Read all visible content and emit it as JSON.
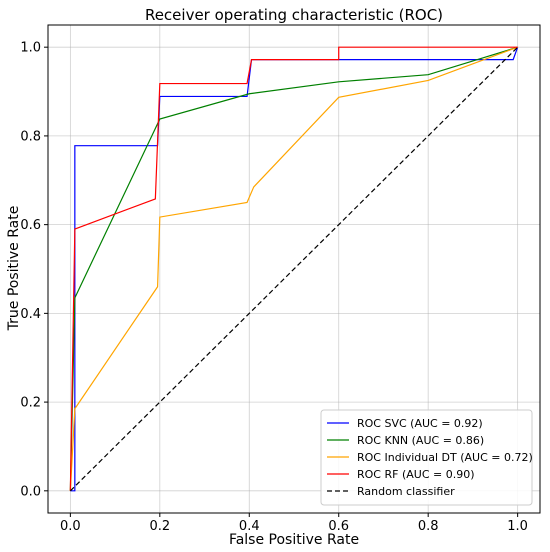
{
  "chart_data": {
    "type": "line",
    "title": "Receiver operating characteristic (ROC)",
    "xlabel": "False Positive Rate",
    "ylabel": "True Positive Rate",
    "xlim": [
      -0.05,
      1.05
    ],
    "ylim": [
      -0.05,
      1.05
    ],
    "xticks": [
      0.0,
      0.2,
      0.4,
      0.6,
      0.8,
      1.0
    ],
    "xtick_labels": [
      "0.0",
      "0.2",
      "0.4",
      "0.6",
      "0.8",
      "1.0"
    ],
    "yticks": [
      0.0,
      0.2,
      0.4,
      0.6,
      0.8,
      1.0
    ],
    "ytick_labels": [
      "0.0",
      "0.2",
      "0.4",
      "0.6",
      "0.8",
      "1.0"
    ],
    "grid": true,
    "legend_position": "bottom-right",
    "series": [
      {
        "name": "ROC SVC (AUC = 0.92)",
        "color": "#0000ff",
        "dash": "solid",
        "x": [
          0.0,
          0.01,
          0.01,
          0.195,
          0.2,
          0.395,
          0.405,
          0.6,
          0.8,
          0.99,
          1.0
        ],
        "y": [
          0.0,
          0.0,
          0.778,
          0.778,
          0.889,
          0.889,
          0.972,
          0.972,
          0.972,
          0.972,
          1.0
        ]
      },
      {
        "name": "ROC KNN (AUC = 0.86)",
        "color": "#008000",
        "dash": "solid",
        "x": [
          0.0,
          0.01,
          0.2,
          0.4,
          0.6,
          0.8,
          1.0
        ],
        "y": [
          0.0,
          0.435,
          0.838,
          0.895,
          0.922,
          0.938,
          1.0
        ]
      },
      {
        "name": "ROC Individual DT (AUC = 0.72)",
        "color": "#ffa500",
        "dash": "solid",
        "x": [
          0.0,
          0.01,
          0.195,
          0.2,
          0.395,
          0.41,
          0.6,
          0.8,
          1.0
        ],
        "y": [
          0.0,
          0.185,
          0.46,
          0.617,
          0.65,
          0.685,
          0.887,
          0.925,
          1.0
        ]
      },
      {
        "name": "ROC RF (AUC = 0.90)",
        "color": "#ff0000",
        "dash": "solid",
        "x": [
          0.0,
          0.01,
          0.19,
          0.2,
          0.395,
          0.405,
          0.6,
          0.6,
          1.0
        ],
        "y": [
          0.0,
          0.59,
          0.658,
          0.918,
          0.918,
          0.972,
          0.972,
          1.0,
          1.0
        ]
      },
      {
        "name": "Random classifier",
        "color": "#000000",
        "dash": "dashed",
        "x": [
          0.0,
          1.0
        ],
        "y": [
          0.0,
          1.0
        ]
      }
    ]
  }
}
